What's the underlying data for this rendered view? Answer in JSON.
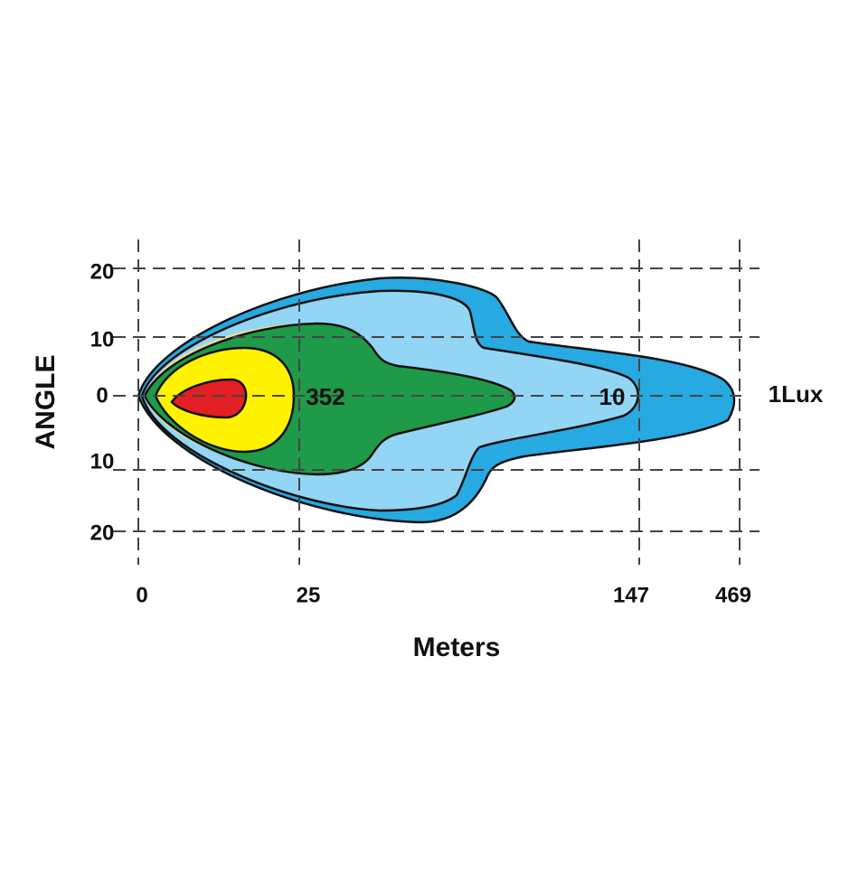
{
  "axis_title_y": "ANGLE",
  "axis_title_x": "Meters",
  "y_labels": [
    "20",
    "10",
    "0",
    "10",
    "20"
  ],
  "x_labels": [
    "0",
    "25",
    "147",
    "469"
  ],
  "contour_labels": [
    "352",
    "10",
    "1Lux"
  ]
}
